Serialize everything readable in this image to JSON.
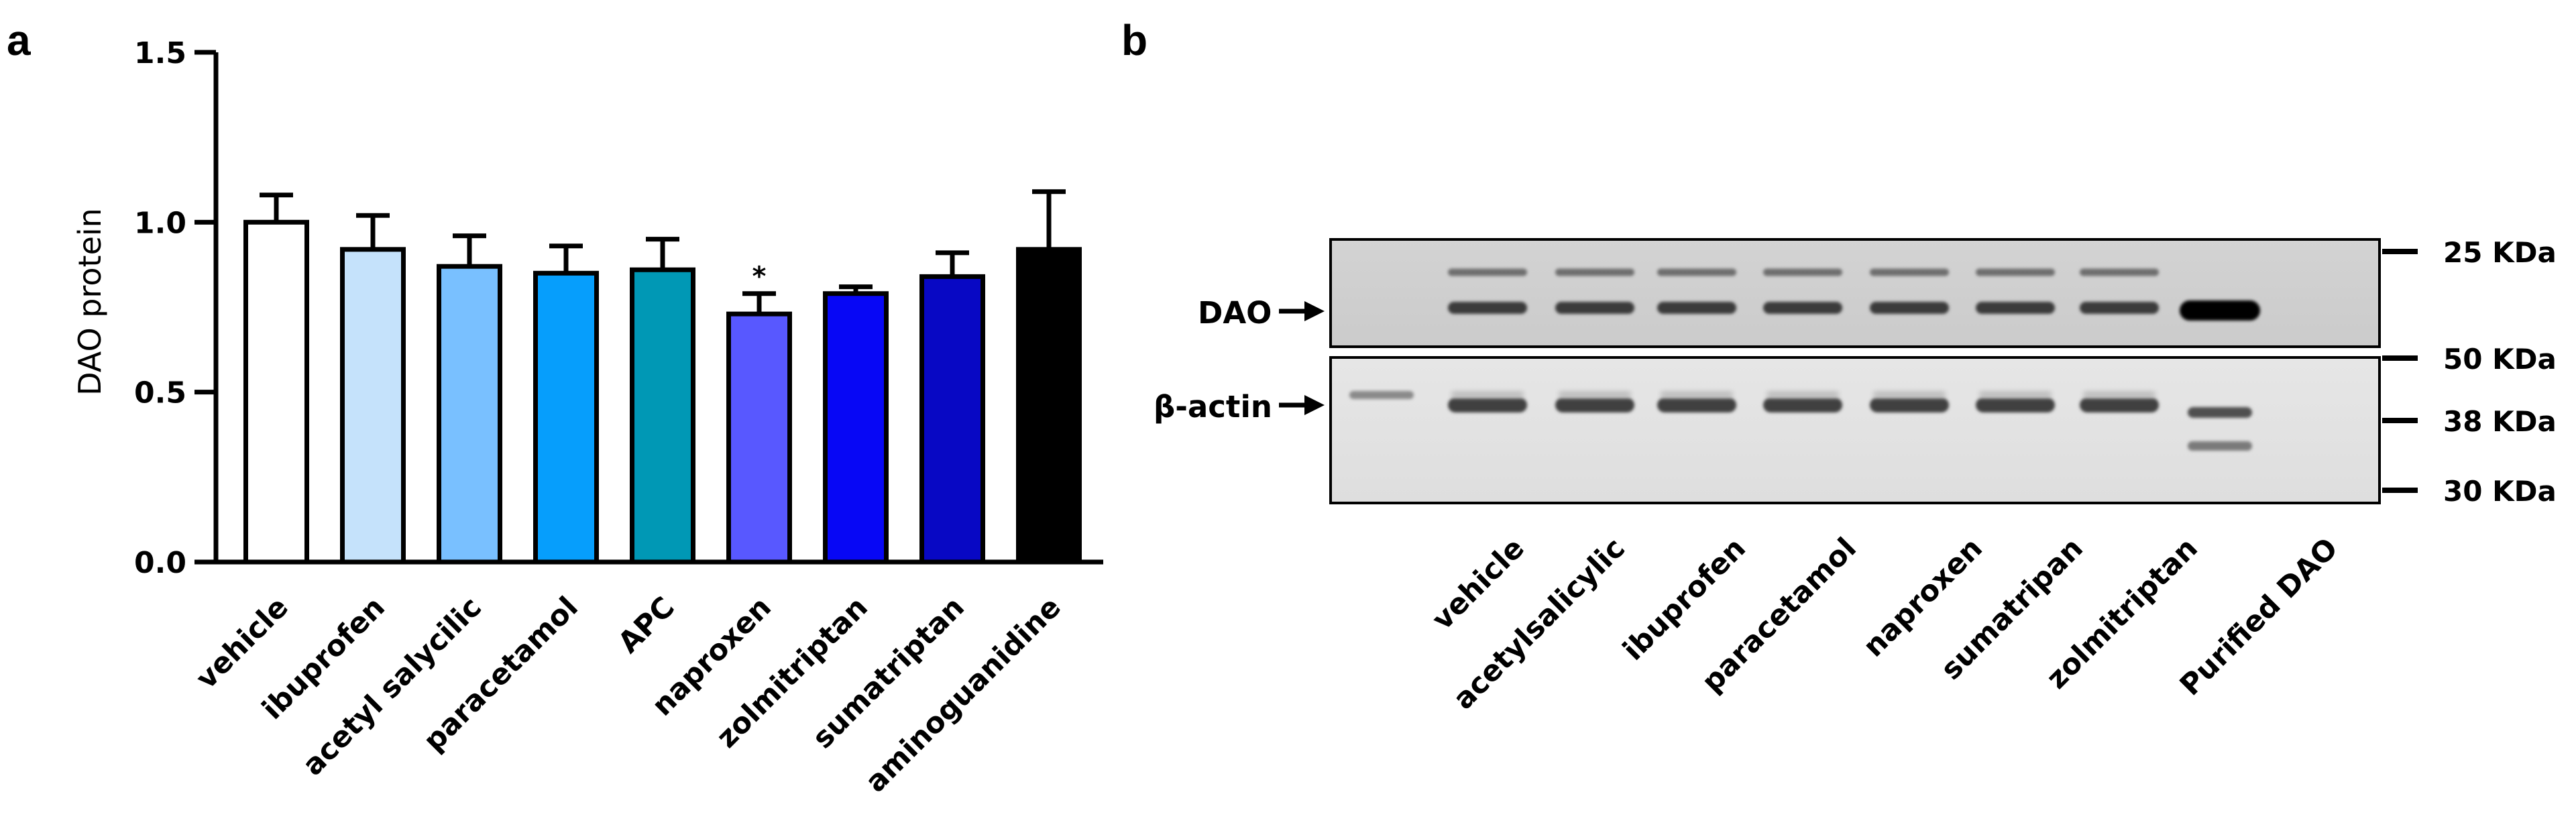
{
  "panels": {
    "a": "a",
    "b": "b"
  },
  "chart_data": [
    {
      "type": "bar",
      "panel": "a",
      "ylabel": "DAO protein",
      "xlabel": "",
      "ylim": [
        0,
        1.5
      ],
      "yticks": [
        0.0,
        0.5,
        1.0,
        1.5
      ],
      "ytick_labels": [
        "0.0",
        "0.5",
        "1.0",
        "1.5"
      ],
      "grid": false,
      "categories": [
        "vehicle",
        "ibuprofen",
        "acetyl salycilic",
        "paracetamol",
        "APC",
        "naproxen",
        "zolmitriptan",
        "sumatriptan",
        "aminoguanidine"
      ],
      "values": [
        1.0,
        0.92,
        0.87,
        0.85,
        0.86,
        0.73,
        0.79,
        0.84,
        0.92
      ],
      "error_upper": [
        0.08,
        0.1,
        0.09,
        0.08,
        0.09,
        0.06,
        0.02,
        0.07,
        0.17
      ],
      "colors": [
        "#ffffff",
        "#c5e2fb",
        "#79c0ff",
        "#069efc",
        "#0098b5",
        "#5858ff",
        "#0707f5",
        "#0808c4",
        "#000000"
      ],
      "annotations": [
        {
          "category": "naproxen",
          "text": "*"
        }
      ]
    },
    {
      "type": "western-blot",
      "panel": "b",
      "row_labels": [
        "DAO",
        "β-actin"
      ],
      "lanes": [
        "vehicle",
        "acetylsalicylic",
        "ibuprofen",
        "paracetamol",
        "naproxen",
        "sumatripan",
        "zolmitriptan",
        "Purified DAO"
      ],
      "markers": [
        "25 KDa",
        "50 KDa",
        "38 KDa",
        "30 KDa"
      ]
    }
  ]
}
